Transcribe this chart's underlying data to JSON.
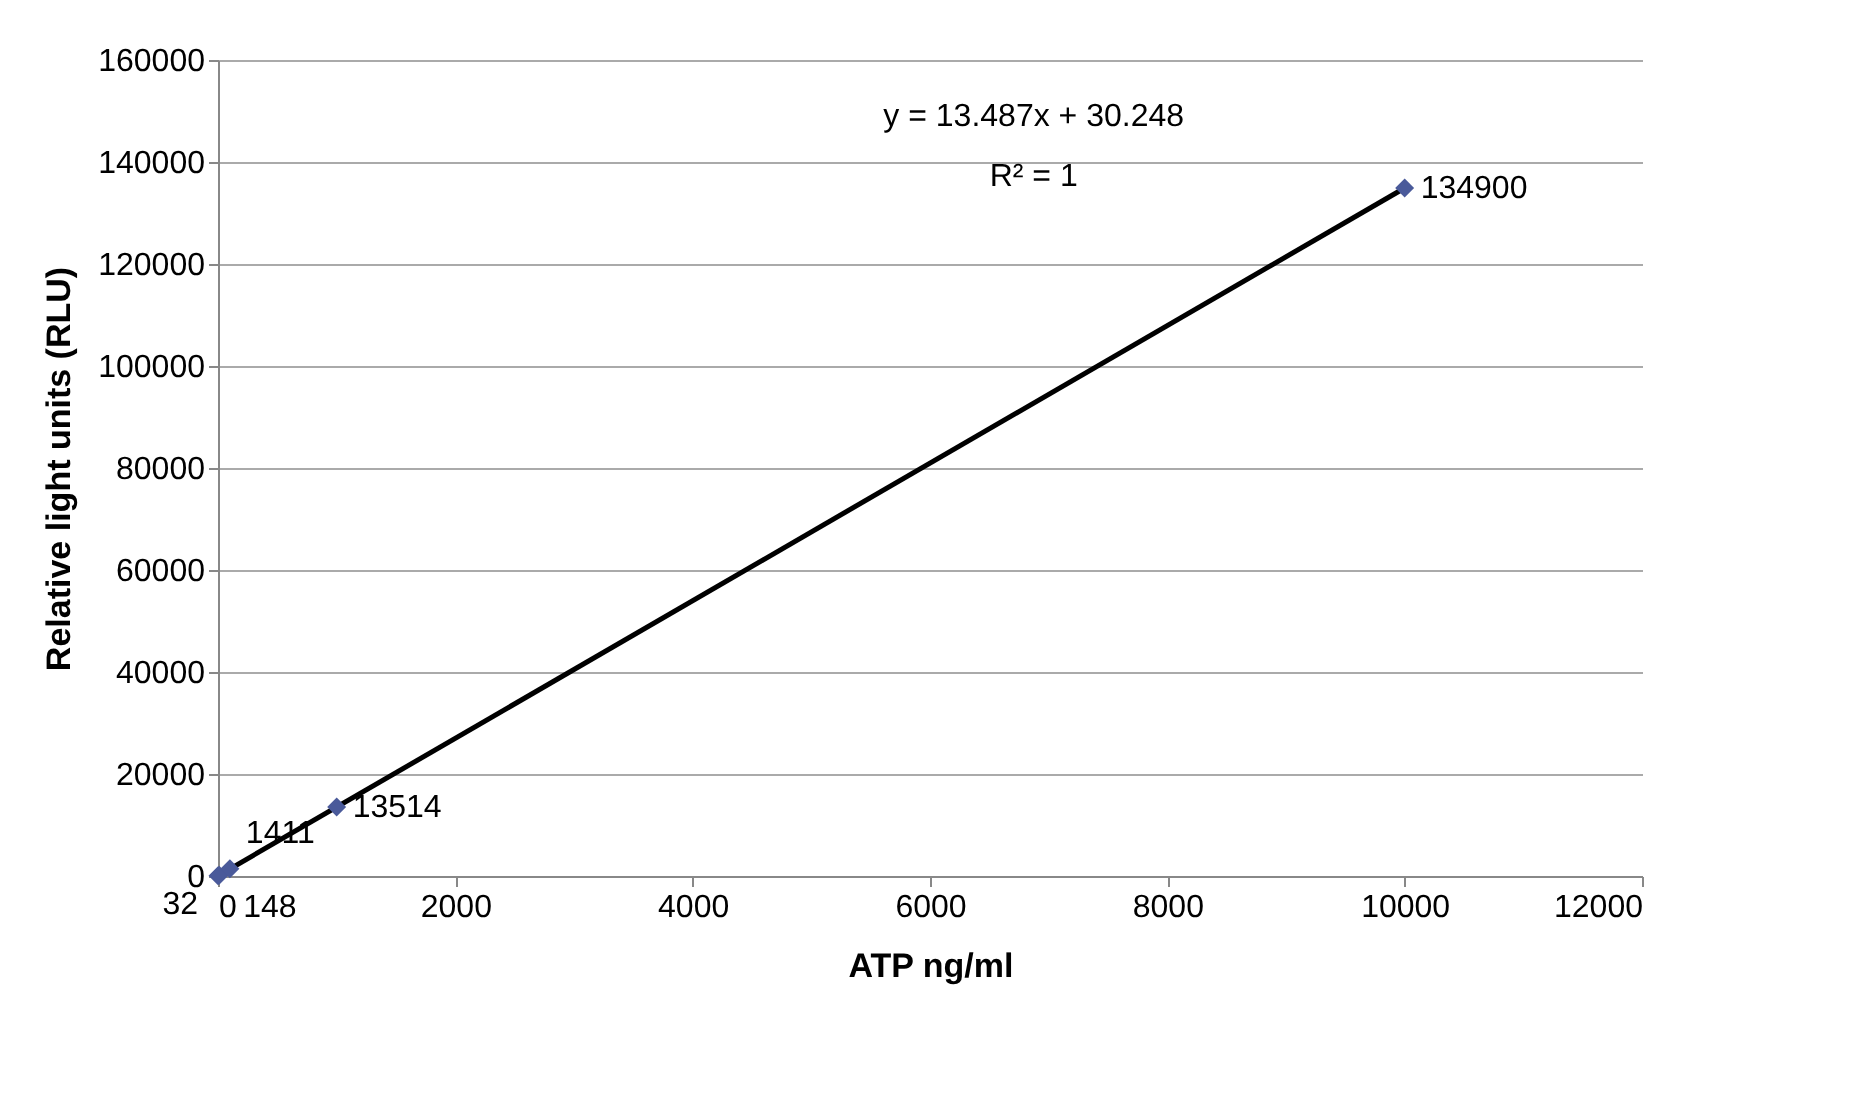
{
  "chart_data": {
    "type": "scatter",
    "xlabel": "ATP ng/ml",
    "ylabel": "Relative light units (RLU)",
    "xlim": [
      0,
      12000
    ],
    "xticks": [
      0,
      2000,
      4000,
      6000,
      8000,
      10000,
      12000
    ],
    "ylim": [
      0,
      160000
    ],
    "yticks": [
      0,
      20000,
      40000,
      60000,
      80000,
      100000,
      120000,
      140000,
      160000
    ],
    "grid": "y",
    "series": [
      {
        "color": "#4a5a9a",
        "marker": "diamond",
        "x": [
          0,
          10,
          100,
          1000,
          10000
        ],
        "values": [
          32,
          148,
          1411,
          13514,
          134900
        ],
        "value_labels": [
          "32",
          "148",
          "1411",
          "13514",
          "134900"
        ]
      },
      {
        "type": "line",
        "color": "#000000",
        "x": [
          0,
          10000
        ],
        "values": [
          30,
          134900
        ]
      }
    ],
    "annotations": [
      "y = 13.487x + 30.248",
      "R² = 1"
    ]
  }
}
